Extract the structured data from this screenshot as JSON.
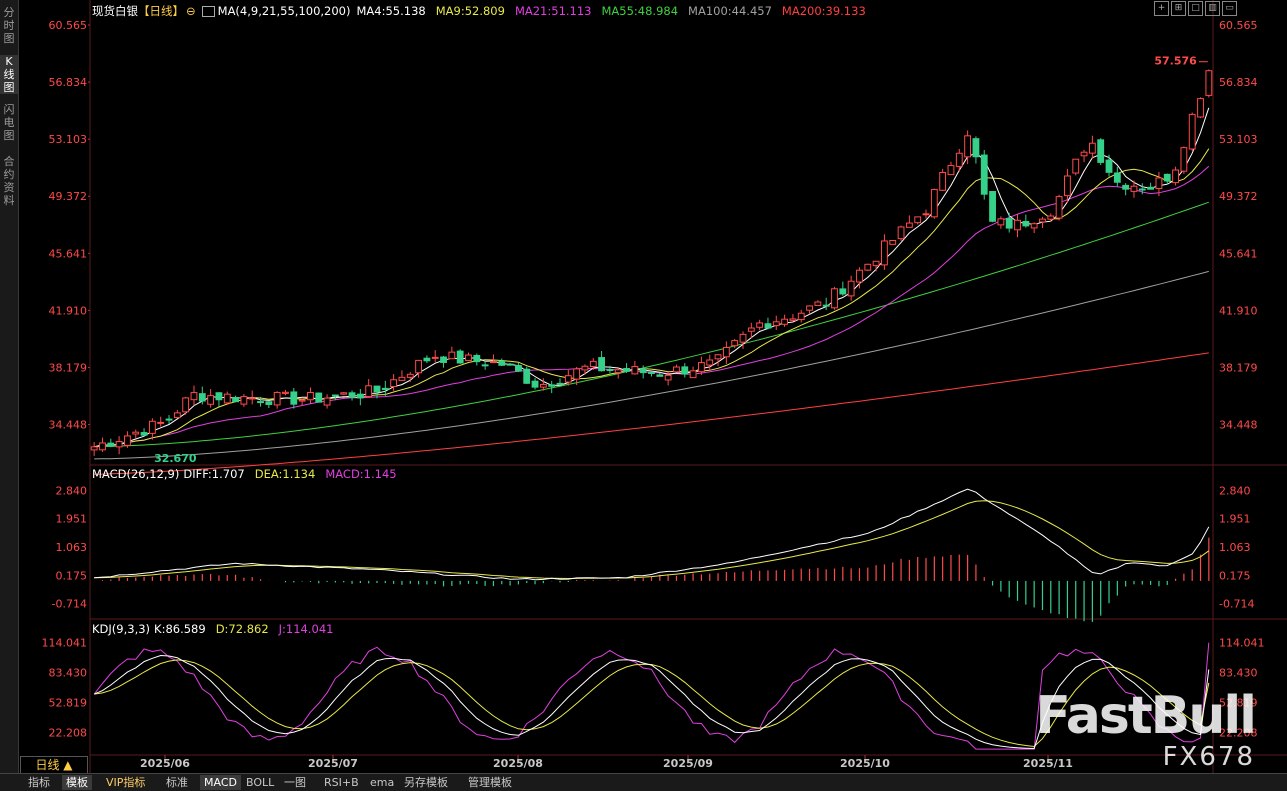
{
  "sidebar": {
    "items": [
      {
        "label": "分时图",
        "active": false
      },
      {
        "label": "K线图",
        "active": true
      },
      {
        "label": "闪电图",
        "active": false
      },
      {
        "label": "合约资料",
        "active": false
      }
    ]
  },
  "header": {
    "symbol": "现货白银",
    "period_tag": "【日线】",
    "ma_spec": "MA(4,9,21,55,100,200)",
    "ma4": "MA4:55.138",
    "ma9": "MA9:52.809",
    "ma21": "MA21:51.113",
    "ma55": "MA55:48.984",
    "ma100": "MA100:44.457",
    "ma200": "MA200:39.133"
  },
  "colors": {
    "up": "#ff4a4a",
    "down": "#35d08a",
    "ma4": "#ffffff",
    "ma9": "#e8e84a",
    "ma21": "#e040e0",
    "ma55": "#40d040",
    "ma100": "#a0a0a0",
    "ma200": "#ff4040",
    "axis_text": "#ff4a4a"
  },
  "price_axis": {
    "ticks": [
      "60.565",
      "56.834",
      "53.103",
      "49.372",
      "45.641",
      "41.910",
      "38.179",
      "34.448"
    ]
  },
  "annotations": {
    "high_label": "57.576",
    "low_label": "32.670"
  },
  "macd": {
    "title": "MACD(26,12,9)",
    "diff": "DIFF:1.707",
    "dea": "DEA:1.134",
    "macd": "MACD:1.145",
    "ticks": [
      "2.840",
      "1.951",
      "1.063",
      "0.175",
      "-0.714"
    ]
  },
  "kdj": {
    "title": "KDJ(9,3,3)",
    "k": "K:86.589",
    "d": "D:72.862",
    "j": "J:114.041",
    "ticks": [
      "114.041",
      "83.430",
      "52.819",
      "22.208"
    ]
  },
  "x_axis": {
    "labels": [
      "2025/06",
      "2025/07",
      "2025/08",
      "2025/09",
      "2025/10",
      "2025/11"
    ]
  },
  "period_tab": "日线 ▲",
  "bottom_bar": {
    "items": [
      "指标",
      "模板",
      "VIP指标",
      "标准",
      "MACD",
      "BOLL",
      "一图",
      "RSI+B",
      "ema",
      "另存模板",
      "管理模板"
    ]
  },
  "watermark": {
    "brand": "FastBull",
    "code": "FX678"
  },
  "chart_data": {
    "type": "candlestick",
    "x_range": [
      "2025/05/26",
      "2025/11/28"
    ],
    "y_range": [
      32.0,
      60.565
    ],
    "last_close": 57.576,
    "period_low": 32.67,
    "ma_last": {
      "MA4": 55.138,
      "MA9": 52.809,
      "MA21": 51.113,
      "MA55": 48.984,
      "MA100": 44.457,
      "MA200": 39.133
    },
    "macd_last": {
      "DIFF": 1.707,
      "DEA": 1.134,
      "MACD": 1.145
    },
    "kdj_last": {
      "K": 86.589,
      "D": 72.862,
      "J": 114.041
    }
  }
}
